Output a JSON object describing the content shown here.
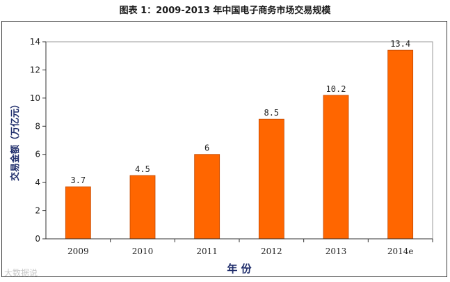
{
  "page": {
    "title": "图表 1：2009-2013 年中国电子商务市场交易规模",
    "watermark": "大数据说"
  },
  "chart_data": {
    "type": "bar",
    "categories": [
      "2009",
      "2010",
      "2011",
      "2012",
      "2013",
      "2014e"
    ],
    "values": [
      3.7,
      4.5,
      6,
      8.5,
      10.2,
      13.4
    ],
    "data_labels": [
      "3.7",
      "4.5",
      "6",
      "8.5",
      "10.2",
      "13.4"
    ],
    "title": "",
    "xlabel": "年 份",
    "ylabel": "交易金额（万亿元）",
    "ylim": [
      0,
      14
    ],
    "yticks": [
      0,
      2,
      4,
      6,
      8,
      10,
      12,
      14
    ],
    "grid": false,
    "legend": "none",
    "colors": {
      "bar_fill": "#FF6600",
      "bar_stroke": "#C04800",
      "axis": "#333333",
      "axis_label": "#1F2D6B",
      "plot_border": "#9a9a9a"
    }
  }
}
